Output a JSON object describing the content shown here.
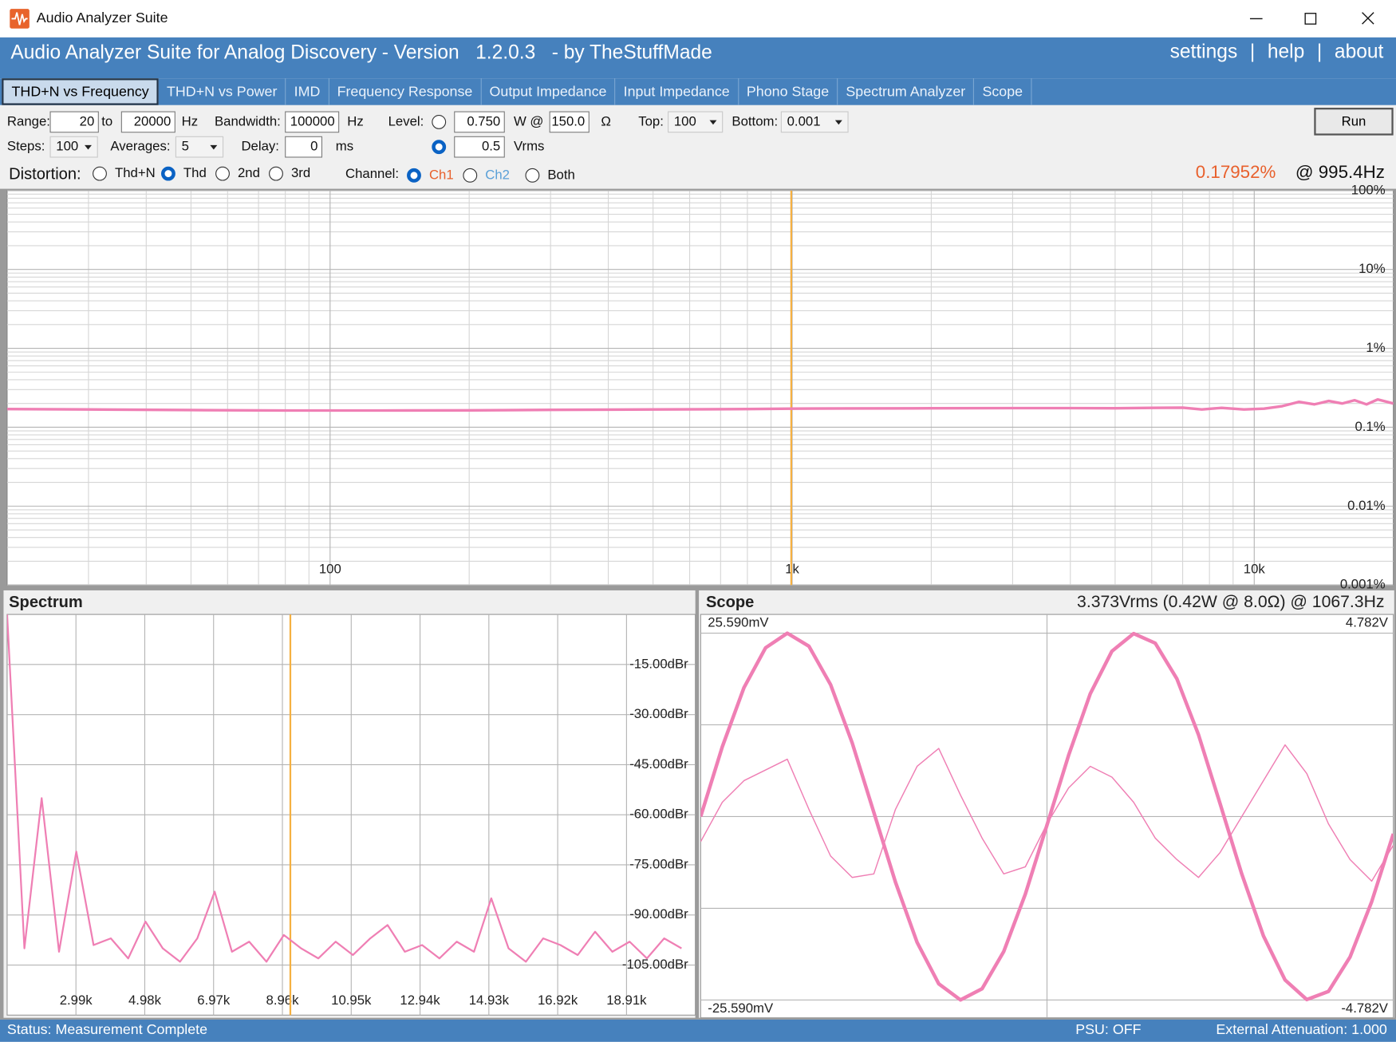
{
  "window": {
    "title": "Audio Analyzer Suite"
  },
  "header": {
    "title": "Audio Analyzer Suite for Analog Discovery - Version   1.2.0.3   - by TheStuffMade",
    "links": [
      "settings",
      "|",
      "help",
      "|",
      "about"
    ]
  },
  "tabs": [
    {
      "label": "THD+N vs Frequency",
      "selected": true
    },
    {
      "label": "THD+N vs Power"
    },
    {
      "label": "IMD"
    },
    {
      "label": "Frequency Response"
    },
    {
      "label": "Output Impedance"
    },
    {
      "label": "Input Impedance"
    },
    {
      "label": "Phono Stage"
    },
    {
      "label": "Spectrum Analyzer"
    },
    {
      "label": "Scope"
    }
  ],
  "controls": {
    "range_label": "Range:",
    "range_from": "20",
    "to_label": "to",
    "range_to": "20000",
    "range_unit": "Hz",
    "bandwidth_label": "Bandwidth:",
    "bandwidth": "100000",
    "bandwidth_unit": "Hz",
    "level_label": "Level:",
    "level_watts": "0.750",
    "watts_unit": "W @",
    "load": "150.0",
    "load_unit": "Ω",
    "top_label": "Top:",
    "top": "100",
    "bottom_label": "Bottom:",
    "bottom": "0.001",
    "run": "Run",
    "steps_label": "Steps:",
    "steps": "100",
    "averages_label": "Averages:",
    "averages": "5",
    "delay_label": "Delay:",
    "delay": "0",
    "delay_unit": "ms",
    "level_vrms": "0.5",
    "vrms_unit": "Vrms",
    "level_selected": 1,
    "distortion": {
      "label": "Distortion:",
      "options": [
        {
          "label": "Thd+N"
        },
        {
          "label": "Thd"
        },
        {
          "label": "2nd"
        },
        {
          "label": "3rd"
        }
      ],
      "selected": 1
    },
    "channel": {
      "label": "Channel:",
      "options": [
        {
          "label": "Ch1",
          "color": "#e8602c"
        },
        {
          "label": "Ch2",
          "color": "#5aa0d8"
        },
        {
          "label": "Both"
        }
      ],
      "selected": 0
    }
  },
  "readout": {
    "value": "0.17952%",
    "value_color": "#e8602c",
    "frequency": "@ 995.4Hz"
  },
  "thd_chart": {
    "type": "line",
    "xlog": true,
    "ylog": true,
    "grid": true,
    "minor_grid": true,
    "x": [
      20,
      30,
      50,
      80,
      130,
      200,
      300,
      500,
      800,
      1000,
      1300,
      2000,
      3000,
      4000,
      5000,
      6000,
      7000,
      7700,
      8500,
      9500,
      10500,
      11500,
      12500,
      13500,
      14500,
      15500,
      16500,
      17500,
      18500,
      20000
    ],
    "series": [
      {
        "color": "#ef7fb4",
        "line_width": 3,
        "values": [
          0.17,
          0.168,
          0.165,
          0.163,
          0.163,
          0.164,
          0.166,
          0.168,
          0.17,
          0.172,
          0.173,
          0.174,
          0.175,
          0.175,
          0.174,
          0.176,
          0.177,
          0.168,
          0.176,
          0.168,
          0.172,
          0.185,
          0.21,
          0.195,
          0.215,
          0.2,
          0.22,
          0.195,
          0.225,
          0.2
        ]
      }
    ],
    "xlim": [
      20,
      20000
    ],
    "xticks": [
      100,
      {
        "value": 1000,
        "label": "1k"
      },
      {
        "value": 10000,
        "label": "10k"
      }
    ],
    "ylim": [
      0.001,
      100
    ],
    "yticks": [
      {
        "value": 100,
        "label": "100%"
      },
      {
        "value": 10,
        "label": "10%"
      },
      {
        "value": 1,
        "label": "1%"
      },
      {
        "value": 0.1,
        "label": "0.1%"
      },
      {
        "value": 0.01,
        "label": "0.01%"
      },
      {
        "value": 0.001,
        "label": "0.001%"
      }
    ],
    "cursor": {
      "x": 995.4,
      "color": "#f5b041"
    }
  },
  "spectrum_chart": {
    "type": "line",
    "title": "Spectrum",
    "grid": true,
    "x": [
      1000,
      1500,
      2000,
      2500,
      3000,
      3500,
      4000,
      4500,
      5000,
      5500,
      6000,
      6500,
      7000,
      7500,
      8000,
      8500,
      9000,
      9500,
      10000,
      10500,
      11000,
      11500,
      12000,
      12500,
      13000,
      13500,
      14000,
      14500,
      15000,
      15500,
      16000,
      16500,
      17000,
      17500,
      18000,
      18500,
      19000,
      19500,
      20000,
      20500
    ],
    "series": [
      {
        "color": "#ef7fb4",
        "line_width": 2,
        "values": [
          0,
          -100,
          -55,
          -101,
          -71,
          -99,
          -97,
          -103,
          -92,
          -100,
          -104,
          -97,
          -83,
          -101,
          -98,
          -104,
          -96,
          -100,
          -103,
          -98,
          -102,
          -97,
          -93,
          -101,
          -99,
          -103,
          -98,
          -101,
          -85,
          -100,
          -104,
          -97,
          -99,
          -102,
          -95,
          -101,
          -98,
          -103,
          -97,
          -100
        ]
      }
    ],
    "xlim": [
      1000,
      20900
    ],
    "xticks": [
      {
        "value": 2990,
        "label": "2.99k"
      },
      {
        "value": 4980,
        "label": "4.98k"
      },
      {
        "value": 6970,
        "label": "6.97k"
      },
      {
        "value": 8960,
        "label": "8.96k"
      },
      {
        "value": 10950,
        "label": "10.95k"
      },
      {
        "value": 12940,
        "label": "12.94k"
      },
      {
        "value": 14930,
        "label": "14.93k"
      },
      {
        "value": 16920,
        "label": "16.92k"
      },
      {
        "value": 18910,
        "label": "18.91k"
      }
    ],
    "ylim": [
      -120,
      0
    ],
    "yticks": [
      {
        "value": -15,
        "label": "-15.00dBr"
      },
      {
        "value": -30,
        "label": "-30.00dBr"
      },
      {
        "value": -45,
        "label": "-45.00dBr"
      },
      {
        "value": -60,
        "label": "-60.00dBr"
      },
      {
        "value": -75,
        "label": "-75.00dBr"
      },
      {
        "value": -90,
        "label": "-90.00dBr"
      },
      {
        "value": -105,
        "label": "-105.00dBr"
      }
    ],
    "cursor": {
      "x": 9190,
      "color": "#f5b041"
    }
  },
  "scope_chart": {
    "type": "line",
    "title": "Scope",
    "readout": "3.373Vrms (0.42W @ 8.0Ω) @ 1067.3Hz",
    "grid": {
      "rows": 4,
      "cols": 2
    },
    "ylim": [
      -25.59,
      25.59
    ],
    "yticks": [
      {
        "value": 25.59,
        "label": "25.590mV"
      },
      {
        "value": -25.59,
        "label": "-25.590mV"
      }
    ],
    "y2lim": [
      -4.782,
      4.782
    ],
    "y2ticks": [
      {
        "value": 4.782,
        "label": "4.782V"
      },
      {
        "value": -4.782,
        "label": "-4.782V"
      }
    ],
    "series": [
      {
        "color": "#ef7fb4",
        "line_width": 4,
        "axis": "y2",
        "values": [
          0,
          1.82,
          3.36,
          4.4,
          4.78,
          4.44,
          3.44,
          1.92,
          0.11,
          -1.71,
          -3.28,
          -4.36,
          -4.78,
          -4.49,
          -3.52,
          -2.02,
          -0.22,
          1.6,
          3.2,
          4.31,
          4.77,
          4.52,
          3.59,
          2.13,
          0.33,
          -1.5,
          -3.11,
          -4.26,
          -4.77,
          -4.56,
          -3.66,
          -2.22,
          -0.45
        ]
      },
      {
        "color": "#ef7fb4",
        "line_width": 1.3,
        "values": [
          -3.5,
          2,
          5,
          6.5,
          8,
          1,
          -5.5,
          -8.5,
          -8,
          1,
          7,
          9.5,
          3,
          -3,
          -8,
          -7,
          -1,
          4,
          7,
          5.5,
          2,
          -3,
          -6,
          -8.5,
          -5,
          0,
          5,
          10,
          6,
          -1,
          -6,
          -9,
          -4
        ]
      }
    ]
  },
  "status": {
    "status": "Status: Measurement Complete",
    "psu": "PSU: OFF",
    "attenuation": "External Attenuation: 1.000"
  }
}
